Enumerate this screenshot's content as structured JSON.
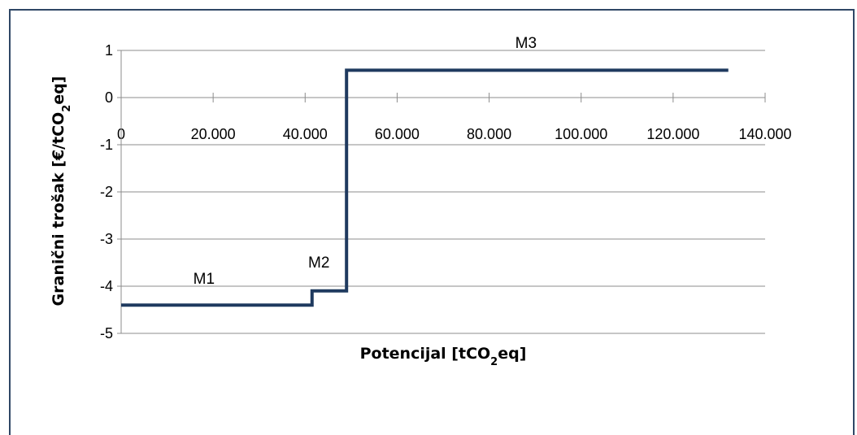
{
  "chart_data": {
    "type": "line",
    "step": true,
    "xlabel": "Potencijal [tCO",
    "xlabel_sub": "2",
    "xlabel_tail": "eq]",
    "ylabel": "Granični trošak [€/tCO",
    "ylabel_sub": "2",
    "ylabel_tail": "eq]",
    "xlim": [
      0,
      140000
    ],
    "ylim": [
      -5,
      1
    ],
    "x_ticks": [
      0,
      20000,
      40000,
      60000,
      80000,
      100000,
      120000,
      140000
    ],
    "x_tick_labels": [
      "0",
      "20.000",
      "40.000",
      "60.000",
      "80.000",
      "100.000",
      "120.000",
      "140.000"
    ],
    "y_ticks": [
      1,
      0,
      -1,
      -2,
      -3,
      -4,
      -5
    ],
    "y_tick_labels": [
      "1",
      "0",
      "-1",
      "-2",
      "-3",
      "-4",
      "-5"
    ],
    "grid": true,
    "series": [
      {
        "color": "#1f3a5f",
        "x": [
          0,
          41500,
          41500,
          49000,
          49000,
          132000
        ],
        "y": [
          -4.4,
          -4.4,
          -4.1,
          -4.1,
          0.58,
          0.58
        ]
      }
    ],
    "annotations": [
      {
        "text": "M1",
        "x": 18000,
        "y": -3.95
      },
      {
        "text": "M2",
        "x": 43000,
        "y": -3.6
      },
      {
        "text": "M3",
        "x": 88000,
        "y": 1.05
      }
    ]
  }
}
